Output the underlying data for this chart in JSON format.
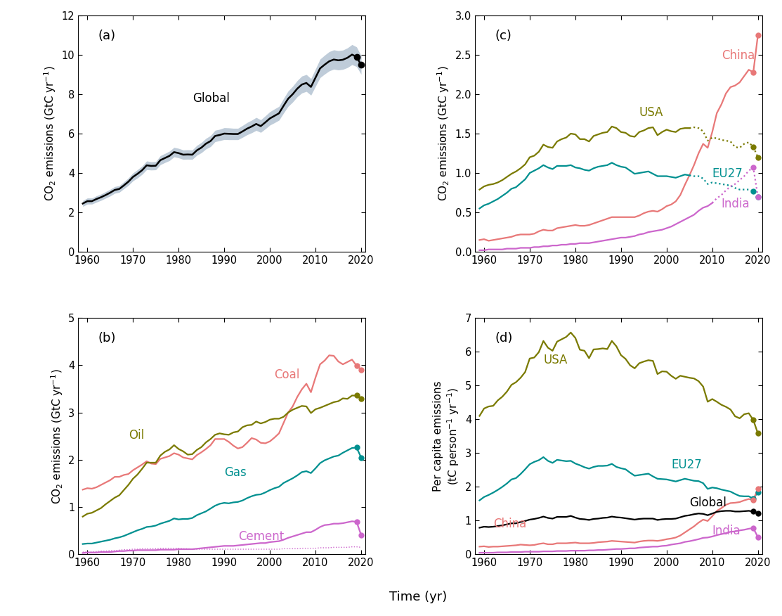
{
  "years": [
    1959,
    1960,
    1961,
    1962,
    1963,
    1964,
    1965,
    1966,
    1967,
    1968,
    1969,
    1970,
    1971,
    1972,
    1973,
    1974,
    1975,
    1976,
    1977,
    1978,
    1979,
    1980,
    1981,
    1982,
    1983,
    1984,
    1985,
    1986,
    1987,
    1988,
    1989,
    1990,
    1991,
    1992,
    1993,
    1994,
    1995,
    1996,
    1997,
    1998,
    1999,
    2000,
    2001,
    2002,
    2003,
    2004,
    2005,
    2006,
    2007,
    2008,
    2009,
    2010,
    2011,
    2012,
    2013,
    2014,
    2015,
    2016,
    2017,
    2018,
    2019,
    2020
  ],
  "global_ff": [
    2.45,
    2.57,
    2.57,
    2.68,
    2.77,
    2.88,
    3.0,
    3.14,
    3.19,
    3.37,
    3.56,
    3.8,
    3.96,
    4.14,
    4.39,
    4.36,
    4.37,
    4.65,
    4.76,
    4.87,
    5.06,
    5.01,
    4.93,
    4.94,
    4.93,
    5.15,
    5.29,
    5.49,
    5.62,
    5.88,
    5.93,
    6.0,
    5.99,
    5.98,
    5.98,
    6.11,
    6.25,
    6.36,
    6.49,
    6.38,
    6.57,
    6.77,
    6.9,
    7.03,
    7.41,
    7.77,
    8.0,
    8.28,
    8.49,
    8.57,
    8.37,
    8.84,
    9.31,
    9.5,
    9.67,
    9.76,
    9.72,
    9.75,
    9.85,
    10.01,
    9.9,
    9.48
  ],
  "global_ff_upper": [
    2.6,
    2.73,
    2.73,
    2.84,
    2.93,
    3.05,
    3.17,
    3.31,
    3.36,
    3.55,
    3.75,
    4.0,
    4.17,
    4.35,
    4.61,
    4.57,
    4.58,
    4.88,
    4.99,
    5.11,
    5.3,
    5.25,
    5.17,
    5.18,
    5.17,
    5.4,
    5.55,
    5.76,
    5.9,
    6.17,
    6.22,
    6.3,
    6.29,
    6.27,
    6.27,
    6.41,
    6.56,
    6.68,
    6.82,
    6.7,
    6.9,
    7.11,
    7.25,
    7.38,
    7.78,
    8.16,
    8.4,
    8.69,
    8.92,
    9.0,
    8.79,
    9.28,
    9.78,
    9.98,
    10.16,
    10.25,
    10.21,
    10.24,
    10.35,
    10.52,
    10.4,
    9.95
  ],
  "global_ff_lower": [
    2.3,
    2.42,
    2.42,
    2.52,
    2.61,
    2.72,
    2.83,
    2.97,
    3.02,
    3.2,
    3.37,
    3.6,
    3.75,
    3.93,
    4.17,
    4.15,
    4.16,
    4.42,
    4.53,
    4.63,
    4.82,
    4.77,
    4.69,
    4.7,
    4.69,
    4.9,
    5.03,
    5.22,
    5.34,
    5.59,
    5.64,
    5.7,
    5.69,
    5.69,
    5.69,
    5.81,
    5.94,
    6.04,
    6.16,
    6.06,
    6.24,
    6.43,
    6.55,
    6.68,
    7.04,
    7.38,
    7.6,
    7.87,
    8.06,
    8.14,
    7.95,
    8.4,
    8.84,
    9.02,
    9.18,
    9.27,
    9.23,
    9.26,
    9.35,
    9.5,
    9.4,
    9.01
  ],
  "coal": [
    1.37,
    1.4,
    1.39,
    1.42,
    1.47,
    1.52,
    1.57,
    1.64,
    1.64,
    1.68,
    1.7,
    1.78,
    1.84,
    1.9,
    1.97,
    1.92,
    1.91,
    2.02,
    2.05,
    2.08,
    2.14,
    2.11,
    2.05,
    2.03,
    2.01,
    2.1,
    2.16,
    2.23,
    2.31,
    2.44,
    2.44,
    2.44,
    2.38,
    2.3,
    2.24,
    2.27,
    2.36,
    2.46,
    2.43,
    2.36,
    2.35,
    2.39,
    2.47,
    2.56,
    2.78,
    3.0,
    3.13,
    3.33,
    3.49,
    3.61,
    3.43,
    3.74,
    4.02,
    4.1,
    4.21,
    4.2,
    4.08,
    4.02,
    4.07,
    4.12,
    3.99,
    3.91
  ],
  "oil": [
    0.8,
    0.86,
    0.88,
    0.93,
    0.98,
    1.06,
    1.13,
    1.2,
    1.25,
    1.36,
    1.47,
    1.6,
    1.69,
    1.81,
    1.94,
    1.94,
    1.94,
    2.09,
    2.17,
    2.22,
    2.31,
    2.23,
    2.18,
    2.11,
    2.12,
    2.21,
    2.27,
    2.37,
    2.44,
    2.53,
    2.56,
    2.54,
    2.53,
    2.58,
    2.6,
    2.69,
    2.73,
    2.74,
    2.81,
    2.77,
    2.8,
    2.85,
    2.87,
    2.87,
    2.91,
    3.0,
    3.06,
    3.1,
    3.14,
    3.13,
    2.99,
    3.07,
    3.1,
    3.14,
    3.18,
    3.22,
    3.24,
    3.3,
    3.29,
    3.36,
    3.36,
    3.29
  ],
  "gas": [
    0.22,
    0.23,
    0.23,
    0.25,
    0.27,
    0.29,
    0.31,
    0.34,
    0.36,
    0.39,
    0.43,
    0.47,
    0.51,
    0.54,
    0.58,
    0.59,
    0.61,
    0.65,
    0.68,
    0.71,
    0.76,
    0.74,
    0.75,
    0.75,
    0.77,
    0.83,
    0.87,
    0.91,
    0.97,
    1.03,
    1.07,
    1.09,
    1.08,
    1.1,
    1.11,
    1.14,
    1.19,
    1.23,
    1.26,
    1.27,
    1.31,
    1.36,
    1.4,
    1.43,
    1.51,
    1.56,
    1.61,
    1.67,
    1.74,
    1.76,
    1.72,
    1.82,
    1.93,
    1.99,
    2.03,
    2.07,
    2.09,
    2.15,
    2.2,
    2.25,
    2.26,
    2.05
  ],
  "cement": [
    0.03,
    0.04,
    0.04,
    0.04,
    0.05,
    0.05,
    0.05,
    0.06,
    0.07,
    0.07,
    0.08,
    0.08,
    0.09,
    0.09,
    0.09,
    0.09,
    0.09,
    0.1,
    0.1,
    0.1,
    0.1,
    0.11,
    0.11,
    0.11,
    0.11,
    0.12,
    0.13,
    0.14,
    0.15,
    0.16,
    0.17,
    0.18,
    0.18,
    0.18,
    0.19,
    0.2,
    0.21,
    0.22,
    0.23,
    0.24,
    0.24,
    0.26,
    0.27,
    0.28,
    0.31,
    0.35,
    0.38,
    0.41,
    0.44,
    0.47,
    0.47,
    0.52,
    0.58,
    0.62,
    0.63,
    0.65,
    0.65,
    0.66,
    0.68,
    0.7,
    0.69,
    0.41
  ],
  "flaring": [
    0.05,
    0.05,
    0.05,
    0.06,
    0.07,
    0.07,
    0.08,
    0.08,
    0.09,
    0.1,
    0.1,
    0.11,
    0.11,
    0.12,
    0.12,
    0.12,
    0.12,
    0.13,
    0.13,
    0.13,
    0.13,
    0.13,
    0.12,
    0.12,
    0.11,
    0.11,
    0.11,
    0.11,
    0.11,
    0.11,
    0.11,
    0.11,
    0.11,
    0.11,
    0.11,
    0.11,
    0.11,
    0.11,
    0.11,
    0.11,
    0.11,
    0.11,
    0.11,
    0.11,
    0.12,
    0.12,
    0.12,
    0.12,
    0.13,
    0.13,
    0.13,
    0.13,
    0.14,
    0.14,
    0.14,
    0.15,
    0.15,
    0.15,
    0.15,
    0.16,
    0.16,
    0.15
  ],
  "china_ff": [
    0.15,
    0.16,
    0.14,
    0.15,
    0.16,
    0.17,
    0.18,
    0.19,
    0.21,
    0.22,
    0.22,
    0.22,
    0.23,
    0.26,
    0.28,
    0.27,
    0.27,
    0.3,
    0.31,
    0.32,
    0.33,
    0.34,
    0.33,
    0.33,
    0.34,
    0.36,
    0.38,
    0.4,
    0.42,
    0.44,
    0.44,
    0.44,
    0.44,
    0.44,
    0.44,
    0.46,
    0.49,
    0.51,
    0.52,
    0.51,
    0.54,
    0.58,
    0.6,
    0.64,
    0.72,
    0.85,
    0.97,
    1.1,
    1.25,
    1.37,
    1.32,
    1.52,
    1.76,
    1.87,
    2.01,
    2.09,
    2.11,
    2.15,
    2.23,
    2.31,
    2.28,
    2.75
  ],
  "usa_ff": [
    0.79,
    0.83,
    0.85,
    0.86,
    0.88,
    0.91,
    0.95,
    0.99,
    1.02,
    1.06,
    1.11,
    1.2,
    1.22,
    1.27,
    1.36,
    1.33,
    1.32,
    1.4,
    1.43,
    1.45,
    1.5,
    1.49,
    1.43,
    1.43,
    1.4,
    1.47,
    1.49,
    1.51,
    1.52,
    1.59,
    1.57,
    1.52,
    1.51,
    1.47,
    1.46,
    1.52,
    1.54,
    1.57,
    1.58,
    1.48,
    1.52,
    1.55,
    1.53,
    1.52,
    1.56,
    1.57,
    1.57,
    1.58,
    1.57,
    1.53,
    1.41,
    1.45,
    1.44,
    1.42,
    1.41,
    1.4,
    1.33,
    1.32,
    1.37,
    1.39,
    1.33,
    1.2
  ],
  "eu27_ff": [
    0.55,
    0.59,
    0.61,
    0.64,
    0.67,
    0.71,
    0.75,
    0.8,
    0.82,
    0.87,
    0.92,
    1.0,
    1.03,
    1.06,
    1.1,
    1.07,
    1.05,
    1.09,
    1.09,
    1.09,
    1.1,
    1.07,
    1.06,
    1.04,
    1.03,
    1.06,
    1.08,
    1.09,
    1.1,
    1.13,
    1.1,
    1.08,
    1.07,
    1.03,
    0.99,
    1.0,
    1.01,
    1.02,
    0.99,
    0.96,
    0.96,
    0.96,
    0.95,
    0.94,
    0.96,
    0.98,
    0.97,
    0.96,
    0.96,
    0.93,
    0.86,
    0.88,
    0.87,
    0.86,
    0.85,
    0.84,
    0.81,
    0.79,
    0.79,
    0.79,
    0.77,
    0.7
  ],
  "india_ff": [
    0.02,
    0.02,
    0.03,
    0.03,
    0.03,
    0.03,
    0.04,
    0.04,
    0.04,
    0.05,
    0.05,
    0.05,
    0.06,
    0.06,
    0.07,
    0.07,
    0.08,
    0.08,
    0.09,
    0.09,
    0.1,
    0.1,
    0.11,
    0.11,
    0.11,
    0.12,
    0.13,
    0.14,
    0.15,
    0.16,
    0.17,
    0.18,
    0.18,
    0.19,
    0.2,
    0.22,
    0.23,
    0.25,
    0.26,
    0.27,
    0.28,
    0.3,
    0.32,
    0.35,
    0.38,
    0.41,
    0.44,
    0.47,
    0.52,
    0.56,
    0.58,
    0.62,
    0.68,
    0.72,
    0.78,
    0.83,
    0.86,
    0.91,
    0.96,
    1.03,
    1.07,
    0.7
  ],
  "pc_usa": [
    4.1,
    4.32,
    4.38,
    4.4,
    4.56,
    4.67,
    4.82,
    5.02,
    5.1,
    5.23,
    5.4,
    5.8,
    5.83,
    5.99,
    6.32,
    6.12,
    6.03,
    6.3,
    6.37,
    6.44,
    6.57,
    6.41,
    6.06,
    6.03,
    5.81,
    6.07,
    6.08,
    6.1,
    6.08,
    6.32,
    6.16,
    5.9,
    5.79,
    5.6,
    5.51,
    5.66,
    5.71,
    5.75,
    5.73,
    5.34,
    5.42,
    5.41,
    5.29,
    5.2,
    5.29,
    5.26,
    5.23,
    5.21,
    5.13,
    4.97,
    4.52,
    4.6,
    4.52,
    4.43,
    4.37,
    4.29,
    4.09,
    4.03,
    4.15,
    4.18,
    3.98,
    3.58
  ],
  "pc_eu27": [
    1.6,
    1.7,
    1.76,
    1.83,
    1.91,
    2.0,
    2.1,
    2.22,
    2.26,
    2.38,
    2.52,
    2.67,
    2.74,
    2.79,
    2.88,
    2.77,
    2.71,
    2.8,
    2.78,
    2.76,
    2.77,
    2.69,
    2.64,
    2.58,
    2.54,
    2.59,
    2.62,
    2.62,
    2.63,
    2.68,
    2.59,
    2.55,
    2.52,
    2.42,
    2.33,
    2.35,
    2.37,
    2.39,
    2.31,
    2.24,
    2.23,
    2.22,
    2.19,
    2.16,
    2.2,
    2.24,
    2.21,
    2.18,
    2.17,
    2.11,
    1.94,
    1.98,
    1.96,
    1.92,
    1.89,
    1.86,
    1.79,
    1.73,
    1.72,
    1.72,
    1.65,
    1.85
  ],
  "pc_china": [
    0.23,
    0.24,
    0.22,
    0.23,
    0.23,
    0.24,
    0.25,
    0.26,
    0.27,
    0.29,
    0.28,
    0.27,
    0.28,
    0.31,
    0.33,
    0.3,
    0.3,
    0.33,
    0.33,
    0.33,
    0.34,
    0.35,
    0.33,
    0.33,
    0.33,
    0.34,
    0.36,
    0.37,
    0.38,
    0.4,
    0.39,
    0.38,
    0.37,
    0.36,
    0.35,
    0.38,
    0.4,
    0.41,
    0.41,
    0.4,
    0.42,
    0.45,
    0.47,
    0.5,
    0.56,
    0.65,
    0.74,
    0.83,
    0.94,
    1.03,
    0.99,
    1.13,
    1.29,
    1.37,
    1.47,
    1.52,
    1.53,
    1.55,
    1.6,
    1.64,
    1.61,
    1.94
  ],
  "pc_india": [
    0.05,
    0.05,
    0.05,
    0.05,
    0.06,
    0.06,
    0.06,
    0.07,
    0.07,
    0.07,
    0.08,
    0.08,
    0.08,
    0.08,
    0.09,
    0.09,
    0.09,
    0.1,
    0.1,
    0.1,
    0.11,
    0.11,
    0.11,
    0.11,
    0.12,
    0.12,
    0.13,
    0.13,
    0.14,
    0.15,
    0.16,
    0.16,
    0.17,
    0.18,
    0.18,
    0.2,
    0.21,
    0.22,
    0.23,
    0.23,
    0.25,
    0.26,
    0.29,
    0.31,
    0.33,
    0.37,
    0.39,
    0.42,
    0.45,
    0.49,
    0.5,
    0.53,
    0.57,
    0.6,
    0.63,
    0.67,
    0.68,
    0.71,
    0.73,
    0.76,
    0.78,
    0.51
  ],
  "pc_global": [
    0.79,
    0.82,
    0.81,
    0.82,
    0.84,
    0.86,
    0.89,
    0.92,
    0.92,
    0.96,
    0.99,
    1.03,
    1.05,
    1.08,
    1.12,
    1.08,
    1.06,
    1.11,
    1.11,
    1.11,
    1.14,
    1.09,
    1.05,
    1.04,
    1.02,
    1.05,
    1.06,
    1.08,
    1.09,
    1.12,
    1.1,
    1.09,
    1.07,
    1.05,
    1.03,
    1.05,
    1.06,
    1.06,
    1.06,
    1.02,
    1.04,
    1.05,
    1.05,
    1.06,
    1.1,
    1.14,
    1.16,
    1.19,
    1.21,
    1.2,
    1.16,
    1.21,
    1.26,
    1.28,
    1.29,
    1.29,
    1.27,
    1.27,
    1.28,
    1.29,
    1.27,
    1.22
  ],
  "color_global": "#000000",
  "color_coal": "#e87878",
  "color_oil": "#7a7a00",
  "color_gas": "#009090",
  "color_cement": "#cc66cc",
  "color_china": "#e87878",
  "color_usa": "#7a7a00",
  "color_eu27": "#009090",
  "color_india": "#cc66cc",
  "shade_color": "#6080a0"
}
